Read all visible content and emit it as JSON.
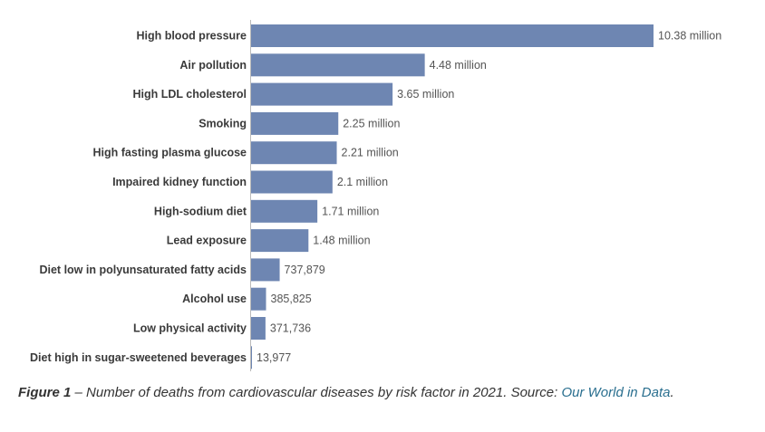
{
  "chart_data": {
    "type": "bar",
    "orientation": "horizontal",
    "categories": [
      "High blood pressure",
      "Air pollution",
      "High LDL cholesterol",
      "Smoking",
      "High fasting plasma glucose",
      "Impaired kidney function",
      "High-sodium diet",
      "Lead exposure",
      "Diet low in polyunsaturated fatty acids",
      "Alcohol use",
      "Low physical activity",
      "Diet high in sugar-sweetened beverages"
    ],
    "values": [
      10380000,
      4480000,
      3650000,
      2250000,
      2210000,
      2100000,
      1710000,
      1480000,
      737879,
      385825,
      371736,
      13977
    ],
    "value_labels": [
      "10.38 million",
      "4.48 million",
      "3.65 million",
      "2.25 million",
      "2.21 million",
      "2.1 million",
      "1.71 million",
      "1.48 million",
      "737,879",
      "385,825",
      "371,736",
      "13,977"
    ],
    "bar_color": "#6e86b2",
    "grid": false
  },
  "caption": {
    "figure": "Figure 1",
    "text": " – Number of deaths from cardiovascular diseases by risk factor in 2021. Source: ",
    "source": "Our World in Data",
    "end": "."
  }
}
